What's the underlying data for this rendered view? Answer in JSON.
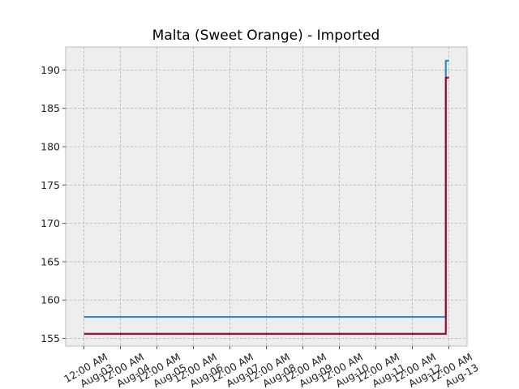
{
  "chart_data": {
    "type": "line",
    "title": "Malta (Sweet Orange) - Imported",
    "xlabel": "",
    "ylabel": "",
    "x_ticks": [
      "12:00 AM\nAug-03",
      "12:00 AM\nAug-04",
      "12:00 AM\nAug-05",
      "12:00 AM\nAug-06",
      "12:00 AM\nAug-07",
      "12:00 AM\nAug-08",
      "12:00 AM\nAug-09",
      "12:00 AM\nAug-10",
      "12:00 AM\nAug-11",
      "12:00 AM\nAug-12",
      "12:00 AM\nAug-13"
    ],
    "xlim": [
      "Aug-02 12:00",
      "Aug-13 12:00"
    ],
    "ylim": [
      154,
      193
    ],
    "y_ticks": [
      155,
      160,
      165,
      170,
      175,
      180,
      185,
      190
    ],
    "grid": true,
    "series": [
      {
        "color": "#348abd",
        "points": [
          [
            "Aug-03 00:00",
            157.8
          ],
          [
            "Aug-12 22:00",
            157.8
          ],
          [
            "Aug-12 22:00",
            191.2
          ],
          [
            "Aug-13 00:00",
            191.2
          ]
        ]
      },
      {
        "color": "#a60628",
        "points": [
          [
            "Aug-03 00:00",
            155.6
          ],
          [
            "Aug-12 22:00",
            155.6
          ],
          [
            "Aug-12 22:00",
            189.0
          ],
          [
            "Aug-13 00:00",
            189.0
          ]
        ]
      }
    ],
    "colors": {
      "background": "#eeeeee",
      "grid": "#b2b2b2",
      "frame": "#bcbcbc"
    }
  }
}
